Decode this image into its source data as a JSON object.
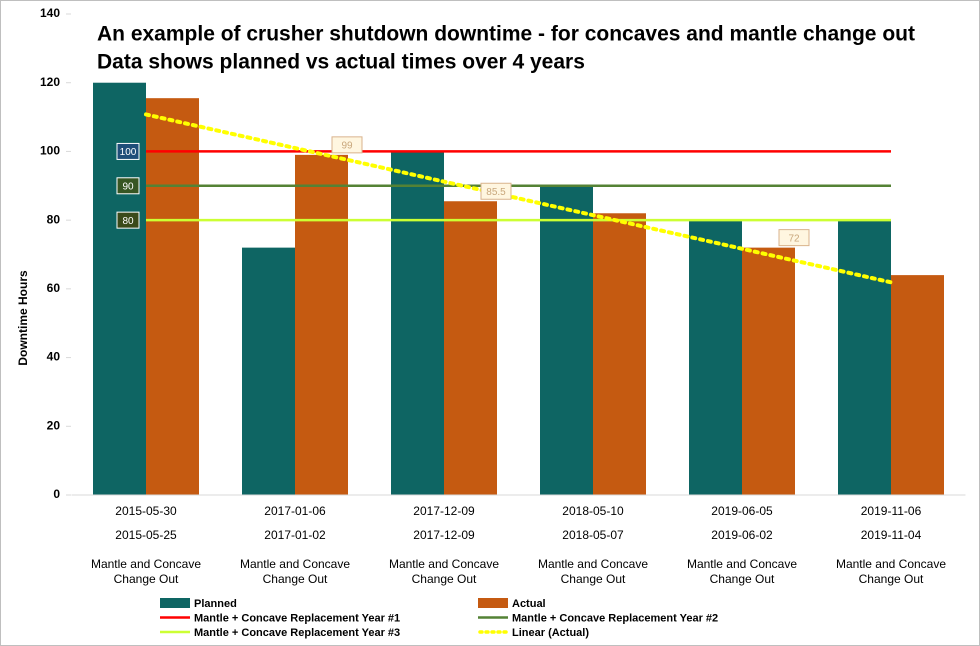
{
  "chart_data": {
    "type": "bar",
    "title": "An example of crusher shutdown downtime - for concaves and mantle change out",
    "subtitle": "Data shows planned vs actual times over 4 years",
    "y_label": "Downtime Hours",
    "categories": [
      "Mantle and Concave Change Out",
      "Mantle and Concave Change Out",
      "Mantle and Concave Change Out",
      "Mantle and Concave Change Out",
      "Mantle and Concave Change Out",
      "Mantle and Concave Change Out"
    ],
    "planned_dates": [
      "2015-05-30",
      "2017-01-06",
      "2017-12-09",
      "2018-05-10",
      "2019-06-05",
      "2019-11-06"
    ],
    "actual_dates": [
      "2015-05-25",
      "2017-01-02",
      "2017-12-09",
      "2018-05-07",
      "2019-06-02",
      "2019-11-04"
    ],
    "series": [
      {
        "name": "Planned",
        "color": "#0e6563",
        "values": [
          120,
          72,
          100,
          90,
          80,
          80
        ]
      },
      {
        "name": "Actual",
        "color": "#c55a11",
        "values": [
          115.5,
          99,
          85.5,
          82,
          72,
          64
        ],
        "data_labels": [
          false,
          true,
          true,
          false,
          true,
          false
        ]
      }
    ],
    "reference_lines": [
      {
        "name": "Mantle + Concave Replacement Year #1",
        "value": 100,
        "color": "#ff0000"
      },
      {
        "name": "Mantle + Concave Replacement Year #2",
        "value": 90,
        "color": "#548235"
      },
      {
        "name": "Mantle + Concave Replacement Year #3",
        "value": 80,
        "color": "#ccff33"
      }
    ],
    "trendline": {
      "name": "Linear (Actual)",
      "series": 1,
      "color": "#ffff00"
    },
    "ylim": [
      0,
      140
    ],
    "yticks": [
      0,
      20,
      40,
      60,
      80,
      100,
      120,
      140
    ]
  }
}
